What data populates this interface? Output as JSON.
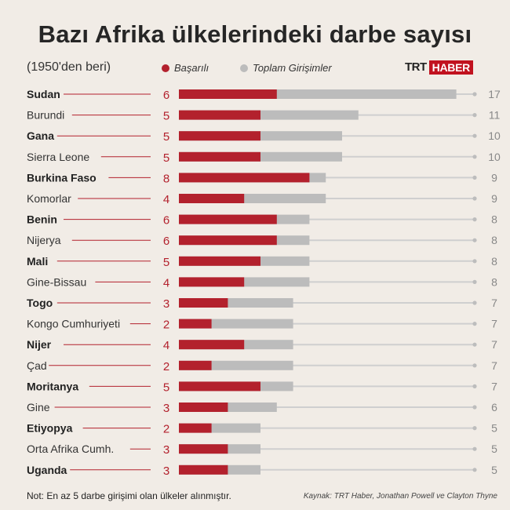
{
  "header": {
    "title": "Bazı Afrika ülkelerindeki darbe sayısı",
    "subtitle": "(1950'den beri)",
    "legend_success": "Başarılı",
    "legend_total": "Toplam Girişimler",
    "logo_trt": "TRT",
    "logo_haber": "HABER"
  },
  "footer": {
    "note": "Not: En az 5 darbe girişimi olan ülkeler alınmıştır.",
    "source": "Kaynak: TRT Haber, Jonathan Powell ve Clayton Thyne"
  },
  "colors": {
    "success": "#b3212d",
    "total": "#bcbcbc",
    "connector": "#b3212d",
    "background": "#f1ece6"
  },
  "chart_data": {
    "type": "bar",
    "orientation": "horizontal",
    "categories": [
      "Sudan",
      "Burundi",
      "Gana",
      "Sierra Leone",
      "Burkina Faso",
      "Komorlar",
      "Benin",
      "Nijerya",
      "Mali",
      "Gine-Bissau",
      "Togo",
      "Kongo Cumhuriyeti",
      "Nijer",
      "Çad",
      "Moritanya",
      "Gine",
      "Etiyopya",
      "Orta Afrika Cumh.",
      "Uganda"
    ],
    "bold": [
      true,
      false,
      true,
      false,
      true,
      false,
      true,
      false,
      true,
      false,
      true,
      false,
      true,
      false,
      true,
      false,
      true,
      false,
      true
    ],
    "series": [
      {
        "name": "Başarılı",
        "values": [
          6,
          5,
          5,
          5,
          8,
          4,
          6,
          6,
          5,
          4,
          3,
          2,
          4,
          2,
          5,
          3,
          2,
          3,
          3
        ]
      },
      {
        "name": "Toplam Girişimler",
        "values": [
          17,
          11,
          10,
          10,
          9,
          9,
          8,
          8,
          8,
          8,
          7,
          7,
          7,
          7,
          7,
          6,
          5,
          5,
          5
        ]
      }
    ],
    "xlim": [
      0,
      18
    ],
    "grid": false,
    "legend_placement": "top"
  }
}
